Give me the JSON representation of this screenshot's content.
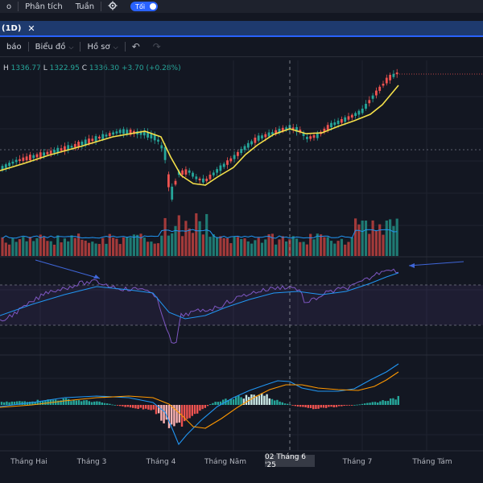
{
  "topbar": {
    "interval_label": "o",
    "analysis_label": "Phân tích",
    "week_label": "Tuần",
    "theme_label": "Tối",
    "settings_icon": "gear-icon"
  },
  "tab": {
    "label": "(1D)",
    "close_icon": "close-icon"
  },
  "toolbar": {
    "alerts_label": "báo",
    "chart_label": "Biểu đồ",
    "profile_label": "Hồ sơ",
    "undo_icon": "undo-icon",
    "redo_icon": "redo-icon"
  },
  "ohlc": {
    "h_label": "H",
    "h_value": "1336.77",
    "l_label": "L",
    "l_value": "1322.95",
    "c_label": "C",
    "c_value": "1336.30",
    "change": "+3.70 (+0.28%)"
  },
  "x_axis": {
    "labels": [
      "Tháng Hai",
      "Tháng 3",
      "Tháng 4",
      "Tháng Năm",
      "Tháng 7",
      "Tháng Tám"
    ],
    "crosshair_date": "02 Tháng 6 '25"
  },
  "colors": {
    "up": "#26a69a",
    "down": "#ef5350",
    "ma": "#f5e14a",
    "rsi": "#7e57c2",
    "macd": "#2196f3",
    "signal": "#ff9800",
    "background": "#131722"
  }
}
